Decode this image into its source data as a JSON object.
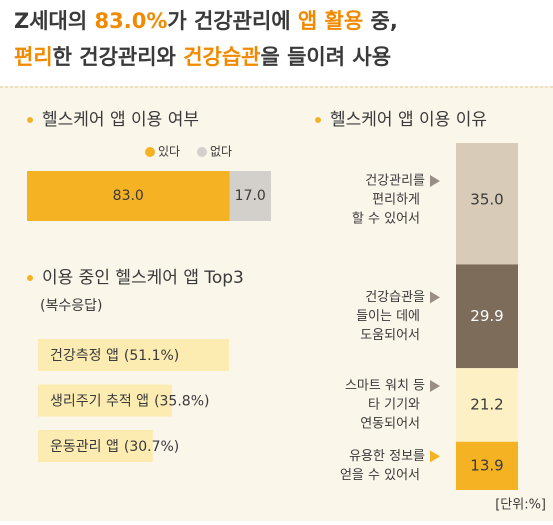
{
  "header": {
    "lines": [
      [
        {
          "text": "Z세대의 ",
          "hl": false
        },
        {
          "text": "83.0%",
          "hl": true
        },
        {
          "text": "가 건강관리에 ",
          "hl": false
        },
        {
          "text": "앱 활용",
          "hl": true
        },
        {
          "text": " 중,",
          "hl": false
        }
      ],
      [
        {
          "text": "편리",
          "hl": true
        },
        {
          "text": "한 건강관리와 ",
          "hl": false
        },
        {
          "text": "건강습관",
          "hl": true
        },
        {
          "text": "을 들이려 사용",
          "hl": false
        }
      ]
    ]
  },
  "chart_data": [
    {
      "type": "stacked-hbar",
      "title": "헬스케어 앱 이용 여부",
      "xlim": [
        0,
        100
      ],
      "series": [
        {
          "name": "있다",
          "color": "#f5b324",
          "values": [
            83.0
          ],
          "value_labels": [
            "83.0"
          ]
        },
        {
          "name": "없다",
          "color": "#d3d0cb",
          "values": [
            17.0
          ],
          "value_labels": [
            "17.0"
          ]
        }
      ]
    },
    {
      "type": "hbar",
      "title": "이용 중인 헬스케어 앱 Top3",
      "subtitle": "(복수응답)",
      "color": "#fcecb2",
      "xlim": [
        0,
        100
      ],
      "categories": [
        "건강측정 앱",
        "생리주기 추적 앱",
        "운동관리 앱"
      ],
      "values": [
        51.1,
        35.8,
        30.7
      ],
      "value_labels": [
        "(51.1%)",
        "(35.8%)",
        "(30.7%)"
      ]
    },
    {
      "type": "stacked-vbar",
      "title": "헬스케어 앱 이용 이유",
      "ylim": [
        0,
        100
      ],
      "unit": "[단위:%]",
      "categories": [
        [
          "건강관리를",
          "편리하게",
          "할 수 있어서"
        ],
        [
          "건강습관을",
          "들이는 데에",
          "도움되어서"
        ],
        [
          "스마트 워치 등",
          "타 기기와",
          "연동되어서"
        ],
        [
          "유용한 정보를",
          "얻을 수 있어서"
        ]
      ],
      "values": [
        35.0,
        29.9,
        21.2,
        13.9
      ],
      "value_labels": [
        "35.0",
        "29.9",
        "21.2",
        "13.9"
      ],
      "colors": [
        "#d8ccb8",
        "#7d6c5a",
        "#fdf0c4",
        "#f5b324"
      ]
    }
  ]
}
